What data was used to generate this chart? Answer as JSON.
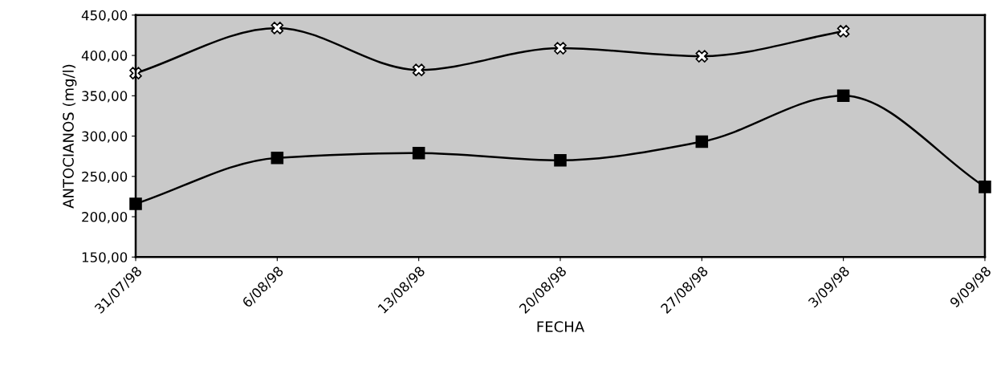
{
  "chart_data": {
    "type": "line",
    "xlabel": "FECHA",
    "ylabel": "ANTOCIANOS (mg/l)",
    "categories": [
      "31/07/98",
      "6/08/98",
      "13/08/98",
      "20/08/98",
      "27/08/98",
      "3/09/98",
      "9/09/98"
    ],
    "series": [
      {
        "color": "#000000",
        "marker": "cross",
        "values": [
          378,
          434,
          382,
          409,
          399,
          430,
          null
        ]
      },
      {
        "color": "#000000",
        "marker": "square",
        "values": [
          216,
          273,
          279,
          270,
          293,
          350,
          237
        ]
      }
    ],
    "ylim": [
      150,
      450
    ],
    "yticks": [
      {
        "value": 150,
        "label": "150,00"
      },
      {
        "value": 200,
        "label": "200,00"
      },
      {
        "value": 250,
        "label": "250,00"
      },
      {
        "value": 300,
        "label": "300,00"
      },
      {
        "value": 350,
        "label": "350,00"
      },
      {
        "value": 400,
        "label": "400,00"
      },
      {
        "value": 450,
        "label": "450,00"
      }
    ],
    "grid": false,
    "legend": false,
    "line_style": "solid"
  }
}
